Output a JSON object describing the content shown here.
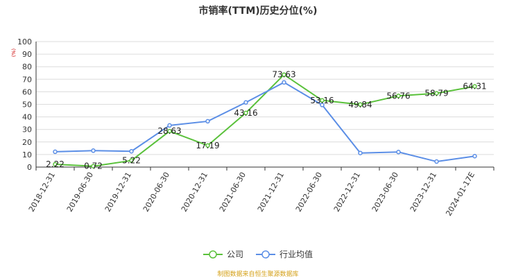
{
  "chart_data": {
    "type": "line",
    "title": "市销率(TTM)历史分位(%)",
    "ylabel": "(%)",
    "ylim": [
      0,
      100
    ],
    "yticks": [
      0,
      10,
      20,
      30,
      40,
      50,
      60,
      70,
      80,
      90,
      100
    ],
    "categories": [
      "2018-12-31",
      "2019-06-30",
      "2019-12-31",
      "2020-06-30",
      "2020-12-31",
      "2021-06-30",
      "2021-12-31",
      "2022-06-30",
      "2022-12-31",
      "2023-06-30",
      "2023-12-31",
      "2024-01-17E"
    ],
    "grid": true,
    "legend_position": "bottom",
    "series": [
      {
        "name": "公司",
        "color": "#5ac13b",
        "values": [
          2.22,
          0.72,
          5.22,
          28.63,
          17.19,
          43.16,
          73.63,
          53.16,
          49.84,
          56.76,
          58.79,
          64.31
        ],
        "labels": [
          "2.22",
          "0.72",
          "5.22",
          "28.63",
          "17.19",
          "43.16",
          "73.63",
          "53.16",
          "49.84",
          "56.76",
          "58.79",
          "64.31"
        ]
      },
      {
        "name": "行业均值",
        "color": "#5b8ee6",
        "values": [
          12.2,
          13.1,
          12.6,
          33.2,
          36.5,
          51.5,
          67.5,
          49.5,
          11.2,
          12.0,
          4.4,
          8.7
        ]
      }
    ]
  },
  "source_text": "制图数据来自恒生聚源数据库"
}
